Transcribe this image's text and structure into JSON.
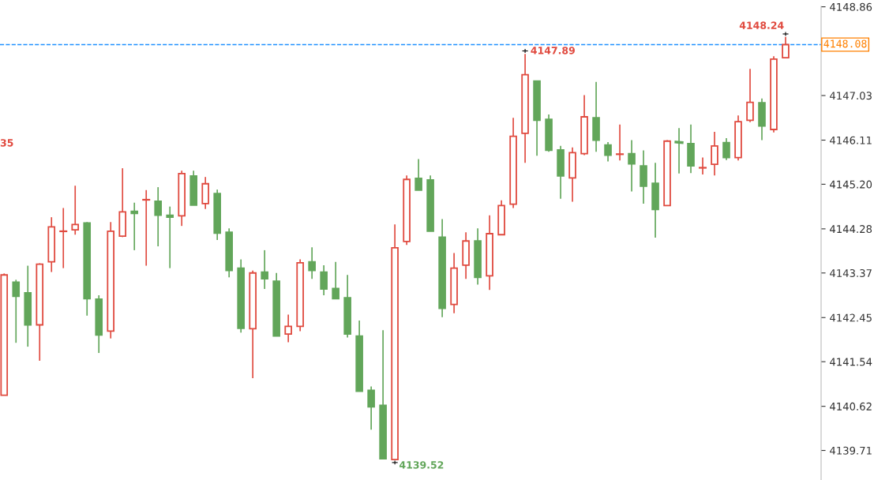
{
  "chart_data": {
    "type": "candlestick",
    "categories": [
      null,
      null,
      null,
      null,
      null,
      null,
      null,
      null,
      null,
      null,
      null,
      null,
      null,
      null,
      null,
      null,
      null,
      null,
      null,
      null,
      null,
      null,
      null,
      null,
      null,
      null,
      null,
      null,
      null,
      null,
      null,
      null,
      null,
      null,
      null,
      null,
      null,
      null,
      null,
      null,
      null,
      null,
      null,
      null,
      null,
      null,
      null,
      null,
      null,
      null,
      null,
      null,
      null,
      null,
      null,
      null,
      null,
      null,
      null,
      null,
      null,
      null,
      null,
      null,
      null,
      null,
      null
    ],
    "ohlc": [
      [
        4140.85,
        4143.36,
        4140.85,
        4143.33
      ],
      [
        4143.18,
        4143.23,
        4141.93,
        4142.89
      ],
      [
        4142.96,
        4143.52,
        4141.85,
        4142.3
      ],
      [
        4142.3,
        4143.57,
        4141.56,
        4143.55
      ],
      [
        4143.6,
        4144.52,
        4143.39,
        4144.32
      ],
      [
        4144.23,
        4144.71,
        4143.47,
        4144.23
      ],
      [
        4144.26,
        4145.17,
        4144.16,
        4144.37
      ],
      [
        4144.4,
        4144.42,
        4142.49,
        4142.84
      ],
      [
        4142.83,
        4142.91,
        4141.72,
        4142.09
      ],
      [
        4142.17,
        4144.42,
        4142.02,
        4144.23
      ],
      [
        4144.13,
        4145.53,
        4144.11,
        4144.63
      ],
      [
        4144.64,
        4144.82,
        4143.84,
        4144.6
      ],
      [
        4144.88,
        4145.08,
        4143.52,
        4144.88
      ],
      [
        4144.85,
        4145.14,
        4143.92,
        4144.56
      ],
      [
        4144.56,
        4144.74,
        4143.47,
        4144.52
      ],
      [
        4144.55,
        4145.48,
        4144.34,
        4145.42
      ],
      [
        4145.37,
        4145.48,
        4144.77,
        4144.77
      ],
      [
        4144.8,
        4145.35,
        4144.69,
        4145.21
      ],
      [
        4145.01,
        4145.09,
        4144.05,
        4144.19
      ],
      [
        4144.21,
        4144.29,
        4143.28,
        4143.42
      ],
      [
        4143.47,
        4143.65,
        4142.14,
        4142.23
      ],
      [
        4142.22,
        4143.42,
        4141.2,
        4143.37
      ],
      [
        4143.39,
        4143.84,
        4143.04,
        4143.25
      ],
      [
        4143.2,
        4143.37,
        4142.07,
        4142.07
      ],
      [
        4142.11,
        4142.51,
        4141.94,
        4142.27
      ],
      [
        4142.27,
        4143.65,
        4142.17,
        4143.58
      ],
      [
        4143.6,
        4143.9,
        4143.25,
        4143.42
      ],
      [
        4143.39,
        4143.53,
        4142.91,
        4143.04
      ],
      [
        4143.05,
        4143.6,
        4142.84,
        4142.84
      ],
      [
        4142.86,
        4143.33,
        4142.04,
        4142.11
      ],
      [
        4142.07,
        4142.39,
        4140.93,
        4140.93
      ],
      [
        4140.95,
        4141.03,
        4140.14,
        4140.61
      ],
      [
        4140.64,
        4142.19,
        4139.54,
        4139.54
      ],
      [
        4139.52,
        4144.37,
        4139.52,
        4143.89
      ],
      [
        4144.02,
        4145.38,
        4143.95,
        4145.3
      ],
      [
        4145.32,
        4145.72,
        4145.08,
        4145.08
      ],
      [
        4145.29,
        4145.38,
        4144.23,
        4144.23
      ],
      [
        4144.11,
        4144.48,
        4142.46,
        4142.64
      ],
      [
        4142.72,
        4143.78,
        4142.54,
        4143.47
      ],
      [
        4143.53,
        4144.21,
        4143.25,
        4144.03
      ],
      [
        4144.03,
        4144.29,
        4143.13,
        4143.28
      ],
      [
        4143.31,
        4144.56,
        4143.02,
        4144.18
      ],
      [
        4144.16,
        4144.87,
        4144.16,
        4144.76
      ],
      [
        4144.79,
        4146.57,
        4144.71,
        4146.19
      ],
      [
        4146.25,
        4147.89,
        4145.64,
        4147.46
      ],
      [
        4147.33,
        4147.34,
        4145.79,
        4146.52
      ],
      [
        4146.54,
        4146.64,
        4145.87,
        4145.9
      ],
      [
        4145.91,
        4145.99,
        4144.9,
        4145.37
      ],
      [
        4145.33,
        4145.96,
        4144.84,
        4145.85
      ],
      [
        4145.83,
        4147.04,
        4145.8,
        4146.59
      ],
      [
        4146.57,
        4147.31,
        4145.87,
        4146.11
      ],
      [
        4146.01,
        4146.07,
        4145.67,
        4145.8
      ],
      [
        4145.82,
        4146.43,
        4145.69,
        4145.82
      ],
      [
        4145.83,
        4146.11,
        4145.05,
        4145.62
      ],
      [
        4145.58,
        4145.9,
        4144.8,
        4145.16
      ],
      [
        4145.22,
        4145.64,
        4144.1,
        4144.68
      ],
      [
        4144.76,
        4146.11,
        4144.76,
        4146.09
      ],
      [
        4146.07,
        4146.36,
        4145.42,
        4146.06
      ],
      [
        4146.04,
        4146.43,
        4145.43,
        4145.58
      ],
      [
        4145.54,
        4145.75,
        4145.4,
        4145.54
      ],
      [
        4145.61,
        4146.28,
        4145.38,
        4145.99
      ],
      [
        4146.06,
        4146.15,
        4145.7,
        4145.75
      ],
      [
        4145.75,
        4146.62,
        4145.69,
        4146.49
      ],
      [
        4146.52,
        4147.58,
        4146.48,
        4146.89
      ],
      [
        4146.88,
        4146.97,
        4146.11,
        4146.4
      ],
      [
        4146.33,
        4147.84,
        4146.27,
        4147.78
      ],
      [
        4147.81,
        4148.24,
        4147.81,
        4148.08
      ]
    ],
    "colors": [
      "#e04a3f",
      "#62a65a",
      "#62a65a",
      "#e04a3f",
      "#e04a3f",
      "#e04a3f",
      "#e04a3f",
      "#62a65a",
      "#62a65a",
      "#e04a3f",
      "#e04a3f",
      "#62a65a",
      "#e04a3f",
      "#62a65a",
      "#62a65a",
      "#e04a3f",
      "#62a65a",
      "#e04a3f",
      "#62a65a",
      "#62a65a",
      "#62a65a",
      "#e04a3f",
      "#62a65a",
      "#62a65a",
      "#e04a3f",
      "#e04a3f",
      "#62a65a",
      "#62a65a",
      "#62a65a",
      "#62a65a",
      "#62a65a",
      "#62a65a",
      "#62a65a",
      "#e04a3f",
      "#e04a3f",
      "#62a65a",
      "#62a65a",
      "#62a65a",
      "#e04a3f",
      "#e04a3f",
      "#62a65a",
      "#e04a3f",
      "#e04a3f",
      "#e04a3f",
      "#e04a3f",
      "#62a65a",
      "#62a65a",
      "#62a65a",
      "#e04a3f",
      "#e04a3f",
      "#62a65a",
      "#62a65a",
      "#e04a3f",
      "#62a65a",
      "#62a65a",
      "#62a65a",
      "#e04a3f",
      "#62a65a",
      "#62a65a",
      "#e04a3f",
      "#e04a3f",
      "#62a65a",
      "#e04a3f",
      "#e04a3f",
      "#62a65a",
      "#e04a3f",
      "#e04a3f"
    ],
    "ylim": [
      4139.1,
      4148.87
    ],
    "yticks": [
      4148.86,
      4147.03,
      4146.11,
      {
        "value": 4145.2,
        "label": "4145.20"
      },
      4144.28,
      4143.37,
      4142.45,
      4141.54,
      4140.62,
      4139.71
    ],
    "tick_labels": "y",
    "grid": false,
    "ref_lines": [
      {
        "axis": "y",
        "value": 4148.08,
        "label": "4148.08",
        "color": "#1e90ff",
        "line_style": "dashed"
      }
    ],
    "annotations": [
      "4148.24",
      "4147.89",
      "4139.52",
      "35"
    ]
  }
}
